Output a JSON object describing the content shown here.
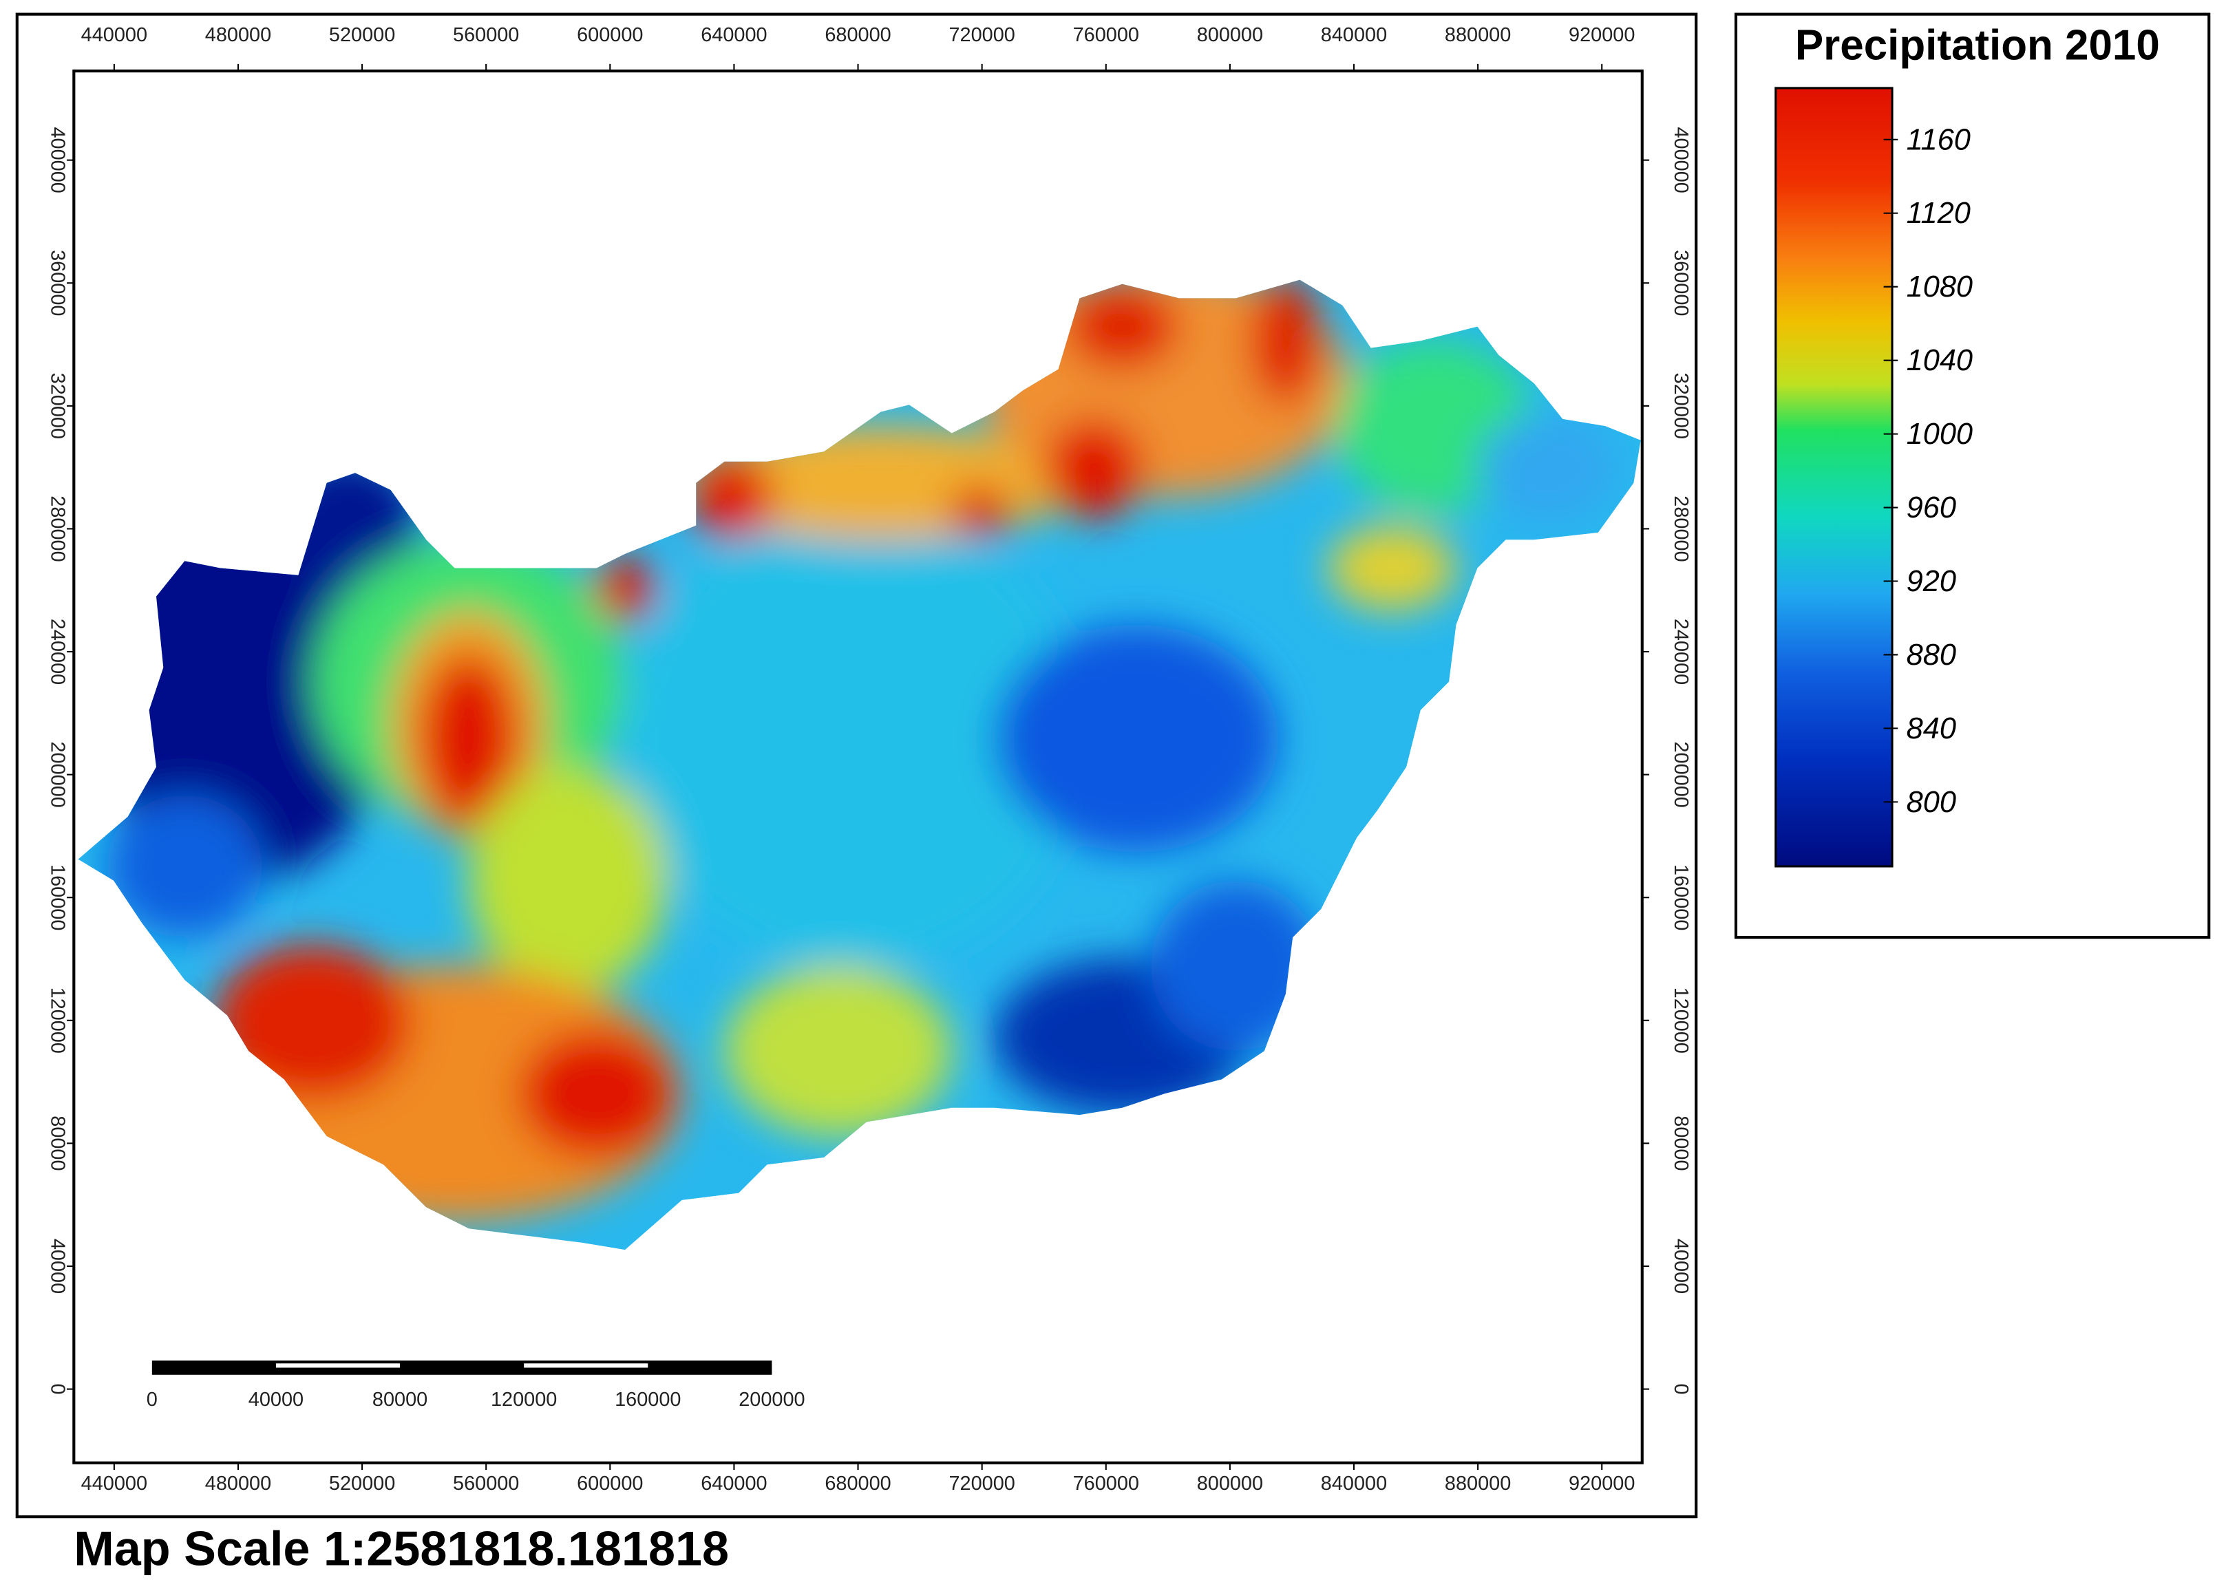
{
  "map": {
    "xlim": [
      427000,
      933000
    ],
    "ylim": [
      -24000,
      429000
    ],
    "x_ticks": [
      440000,
      480000,
      520000,
      560000,
      600000,
      640000,
      680000,
      720000,
      760000,
      800000,
      840000,
      880000,
      920000
    ],
    "y_ticks": [
      0,
      40000,
      80000,
      120000,
      160000,
      200000,
      240000,
      280000,
      320000,
      360000,
      400000
    ]
  },
  "legend": {
    "title": "Precipitation 2010",
    "range": [
      765,
      1188
    ],
    "ticks": [
      800,
      840,
      880,
      920,
      960,
      1000,
      1040,
      1080,
      1120,
      1160
    ]
  },
  "scale_bar": {
    "labels": [
      0,
      40000,
      80000,
      120000,
      160000,
      200000
    ]
  },
  "map_scale": "Map Scale 1:2581818.181818"
}
